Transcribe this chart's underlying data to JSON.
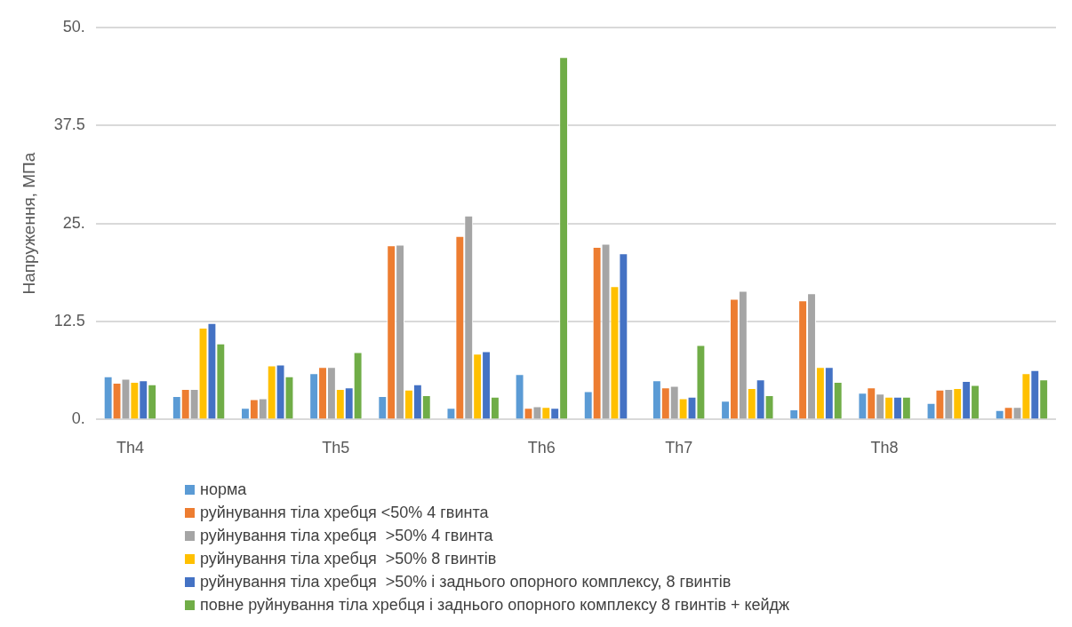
{
  "chart_data": {
    "type": "bar",
    "ylabel": "Напруження, МПа",
    "categories": [
      "Th4",
      null,
      null,
      "Th5",
      null,
      null,
      "Th6",
      null,
      "Th7",
      null,
      null,
      "Th8",
      null,
      null
    ],
    "series": [
      {
        "name": "норма",
        "color": "#5b9bd5",
        "values": [
          5.5,
          3.0,
          1.5,
          5.9,
          3.0,
          1.5,
          5.8,
          3.6,
          5.0,
          2.4,
          1.3,
          3.4,
          2.1,
          1.2
        ]
      },
      {
        "name": "руйнування тіла хребця <50% 4 гвинта",
        "color": "#ed7d31",
        "values": [
          4.7,
          3.9,
          2.6,
          6.7,
          22.2,
          23.4,
          1.5,
          22.0,
          4.1,
          15.4,
          15.2,
          4.1,
          3.8,
          1.6
        ]
      },
      {
        "name": "руйнування тіла хребця  >50% 4 гвинта",
        "color": "#a5a5a5",
        "values": [
          5.2,
          3.9,
          2.7,
          6.7,
          22.3,
          26.0,
          1.7,
          22.4,
          4.3,
          16.4,
          16.1,
          3.3,
          3.9,
          1.6
        ]
      },
      {
        "name": "руйнування тіла хребця  >50% 8 гвинтів",
        "color": "#ffc000",
        "values": [
          4.8,
          11.7,
          6.9,
          3.9,
          3.8,
          8.4,
          1.6,
          17.0,
          2.7,
          4.0,
          6.7,
          2.9,
          4.0,
          5.9
        ]
      },
      {
        "name": "руйнування тіла хребця  >50% і заднього опорного комплексу, 8 гвинтів",
        "color": "#4472c4",
        "values": [
          5.0,
          12.3,
          7.0,
          4.1,
          4.5,
          8.7,
          1.5,
          21.2,
          2.9,
          5.1,
          6.7,
          2.9,
          4.9,
          6.3
        ]
      },
      {
        "name": "повне руйнування тіла хребця і заднього опорного комплексу 8 гвинтів + кейдж",
        "color": "#70ad47",
        "values": [
          4.5,
          9.7,
          5.5,
          8.6,
          3.1,
          2.9,
          46.2,
          null,
          9.5,
          3.1,
          4.8,
          2.9,
          4.4,
          5.1
        ]
      }
    ],
    "ylim": [
      0,
      50
    ],
    "yticks": [
      {
        "value": 0,
        "label": "0."
      },
      {
        "value": 12.5,
        "label": "12.5"
      },
      {
        "value": 25,
        "label": "25."
      },
      {
        "value": 37.5,
        "label": "37.5"
      },
      {
        "value": 50,
        "label": "50."
      }
    ],
    "grid": "y",
    "legend": "bottom"
  }
}
